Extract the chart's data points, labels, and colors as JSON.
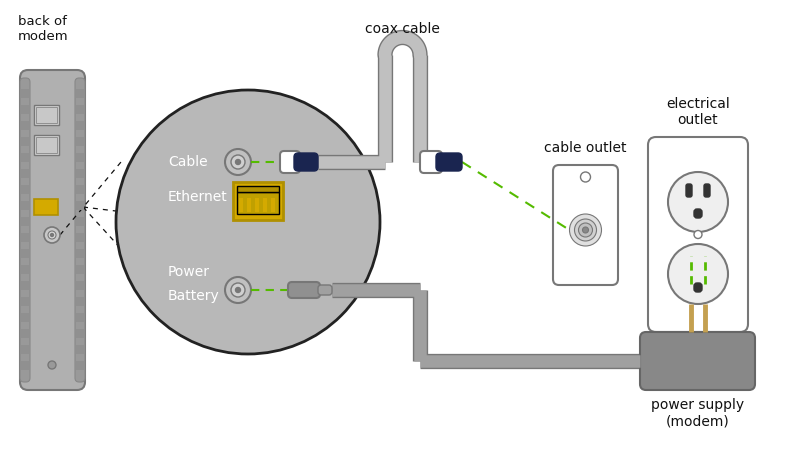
{
  "bg_color": "#ffffff",
  "gray": "#aaaaaa",
  "dark_gray": "#777777",
  "modem_gray": "#b0b0b0",
  "modem_dark": "#999999",
  "yellow": "#d4aa00",
  "green": "#55bb00",
  "dark_blue": "#1a2550",
  "white": "#ffffff",
  "black": "#111111",
  "cable_gray": "#c0c0c0",
  "labels": {
    "back_of_modem": "back of\nmodem",
    "coax_cable": "coax cable",
    "cable_outlet": "cable outlet",
    "electrical_outlet": "electrical\noutlet",
    "power_supply": "power supply\n(modem)",
    "cable": "Cable",
    "ethernet": "Ethernet",
    "power": "Power",
    "battery": "Battery"
  }
}
